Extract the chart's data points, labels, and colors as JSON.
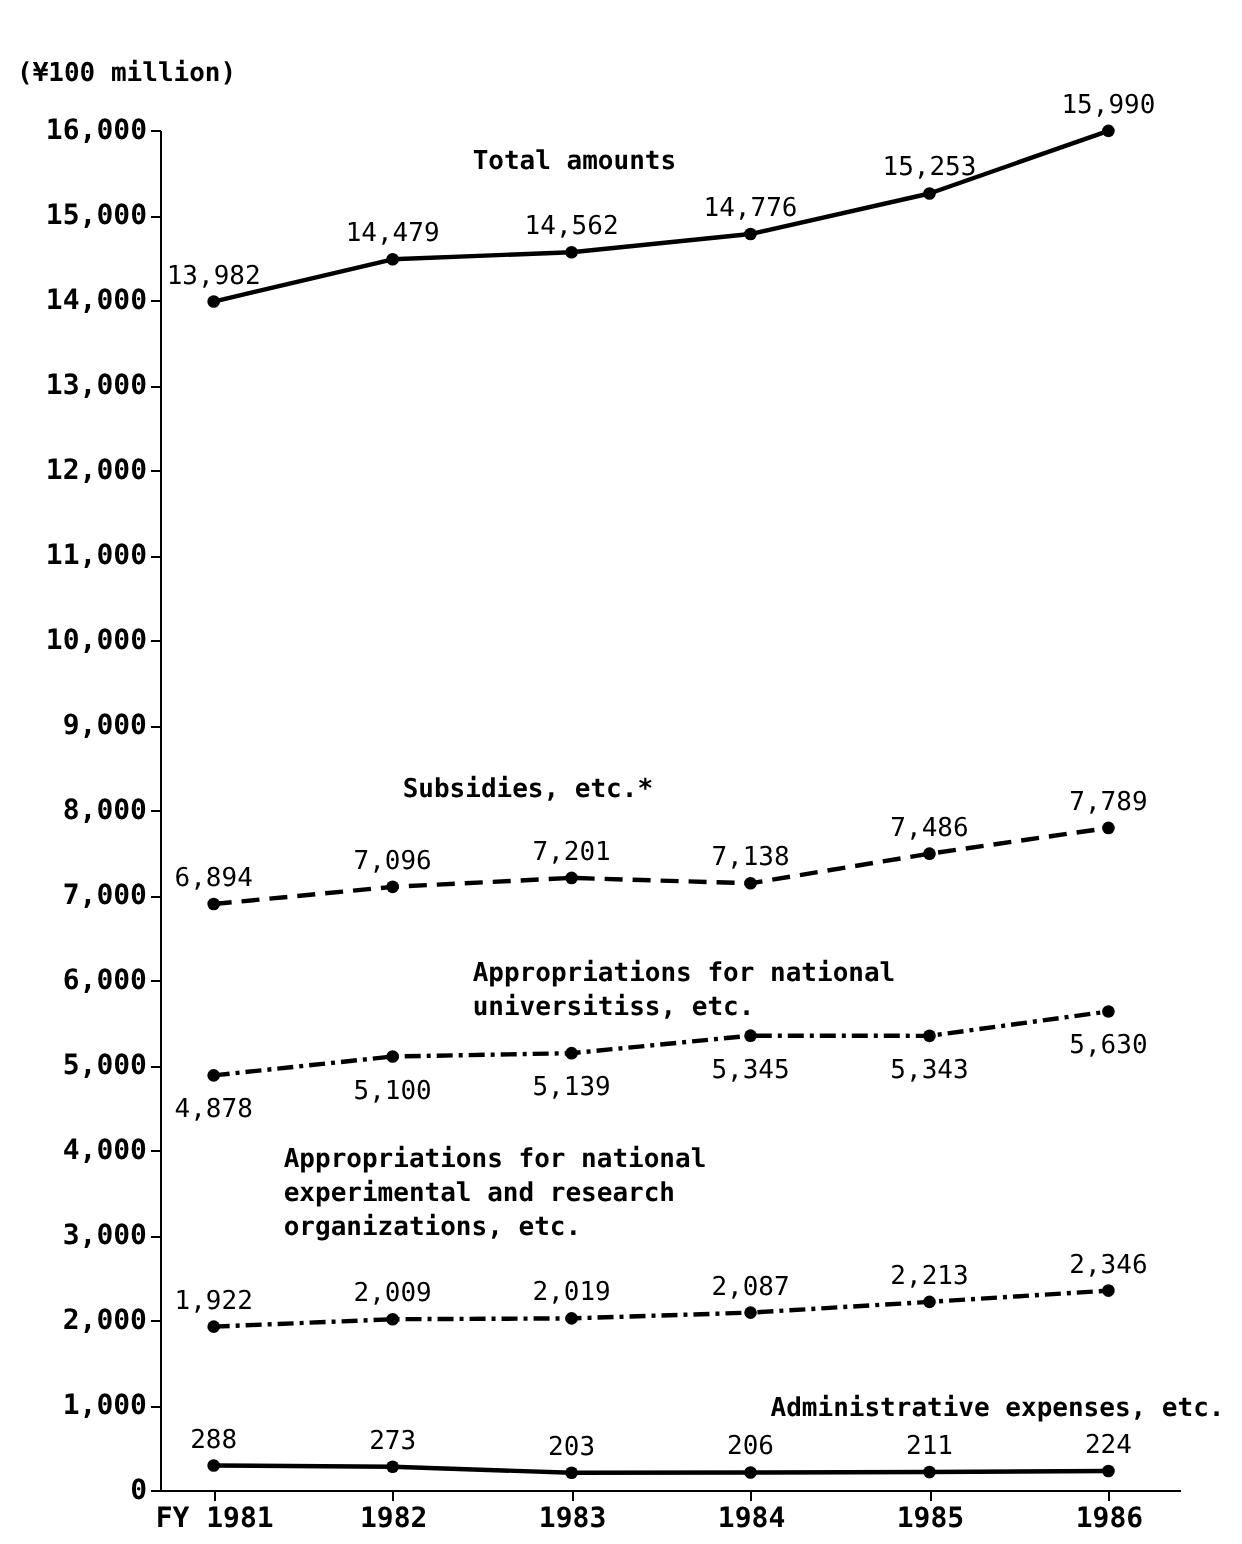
{
  "chart_data": {
    "type": "line",
    "ylabel": "(¥100 million)",
    "categories": [
      "FY 1981",
      "1982",
      "1983",
      "1984",
      "1985",
      "1986"
    ],
    "series": [
      {
        "name": "Total amounts",
        "color": "#000000",
        "line_style": "solid",
        "values": [
          13982,
          14479,
          14562,
          14776,
          15253,
          15990
        ],
        "value_labels": [
          "13,982",
          "14,479",
          "14,562",
          "14,776",
          "15,253",
          "15,990"
        ]
      },
      {
        "name": "Subsidies, etc.*",
        "color": "#000000",
        "line_style": "dashed",
        "values": [
          6894,
          7096,
          7201,
          7138,
          7486,
          7789
        ],
        "value_labels": [
          "6,894",
          "7,096",
          "7,201",
          "7,138",
          "7,486",
          "7,789"
        ]
      },
      {
        "name": "Appropriations for national universitiss, etc.",
        "color": "#000000",
        "line_style": "dotted",
        "values": [
          4878,
          5100,
          5139,
          5345,
          5343,
          5630
        ],
        "value_labels": [
          "4,878",
          "5,100",
          "5,139",
          "5,345",
          "5,343",
          "5,630"
        ]
      },
      {
        "name": "Appropriations for national experimental and research organizations, etc.",
        "color": "#000000",
        "line_style": "dotted",
        "values": [
          1922,
          2009,
          2019,
          2087,
          2213,
          2346
        ],
        "value_labels": [
          "1,922",
          "2,009",
          "2,019",
          "2,087",
          "2,213",
          "2,346"
        ]
      },
      {
        "name": "Administrative expenses, etc.",
        "color": "#000000",
        "line_style": "solid",
        "values": [
          288,
          273,
          203,
          206,
          211,
          224
        ],
        "value_labels": [
          "288",
          "273",
          "203",
          "206",
          "211",
          "224"
        ]
      }
    ],
    "ylim": [
      0,
      16000
    ],
    "yticks": [
      0,
      {
        "value": 1000,
        "label": "1,000"
      },
      {
        "value": 2000,
        "label": "2,000"
      },
      {
        "value": 3000,
        "label": "3,000"
      },
      {
        "value": 4000,
        "label": "4,000"
      },
      {
        "value": 5000,
        "label": "5,000"
      },
      {
        "value": 6000,
        "label": "6,000"
      },
      {
        "value": 7000,
        "label": "7,000"
      },
      {
        "value": 8000,
        "label": "8,000"
      },
      {
        "value": 9000,
        "label": "9,000"
      },
      {
        "value": 10000,
        "label": "10,000"
      },
      {
        "value": 11000,
        "label": "11,000"
      },
      {
        "value": 12000,
        "label": "12,000"
      },
      {
        "value": 13000,
        "label": "13,000"
      },
      {
        "value": 14000,
        "label": "14,000"
      },
      {
        "value": 15000,
        "label": "15,000"
      },
      {
        "value": 16000,
        "label": "16,000"
      }
    ],
    "marker": "circle"
  }
}
